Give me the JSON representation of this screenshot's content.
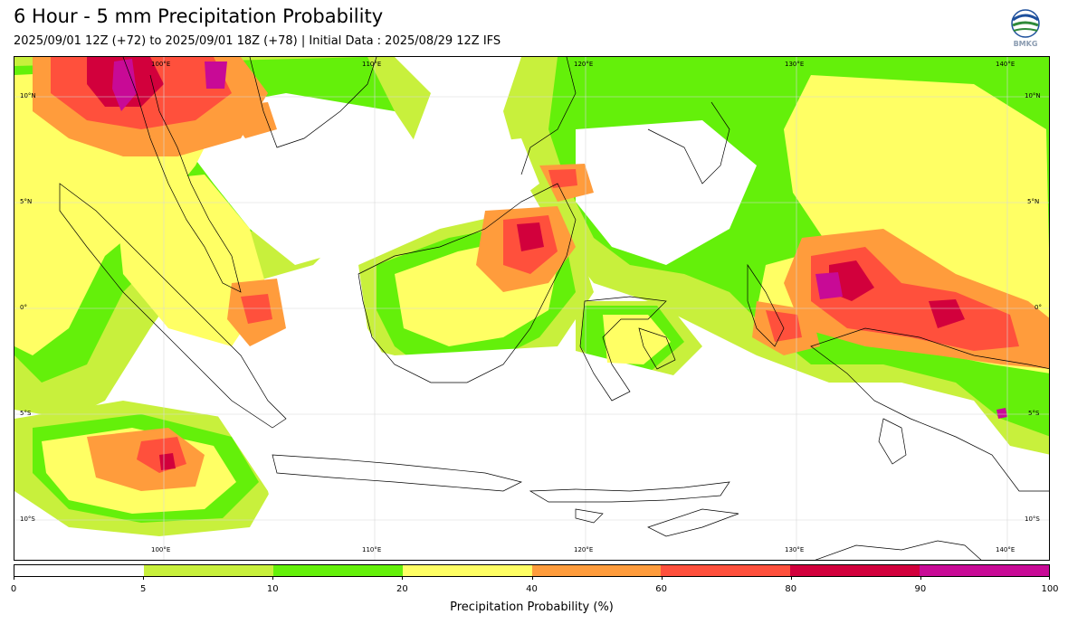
{
  "title": "6 Hour - 5 mm Precipitation Probability",
  "subtitle": "2025/09/01 12Z (+72) to 2025/09/01 18Z (+78) | Initial Data : 2025/08/29 12Z IFS",
  "logo": {
    "text": "BMKG"
  },
  "map": {
    "lon_labels": [
      "100°E",
      "110°E",
      "120°E",
      "130°E",
      "140°E"
    ],
    "lat_labels": [
      "10°N",
      "5°N",
      "0°",
      "5°S",
      "10°S"
    ]
  },
  "colorbar": {
    "ticks": [
      "0",
      "5",
      "10",
      "20",
      "40",
      "60",
      "80",
      "90",
      "100"
    ],
    "colors": [
      "#ffffff",
      "#c8f03c",
      "#64f00a",
      "#ffff64",
      "#ff9c3c",
      "#ff503c",
      "#d2003c",
      "#c80a96"
    ],
    "label": "Precipitation Probability (%)"
  }
}
